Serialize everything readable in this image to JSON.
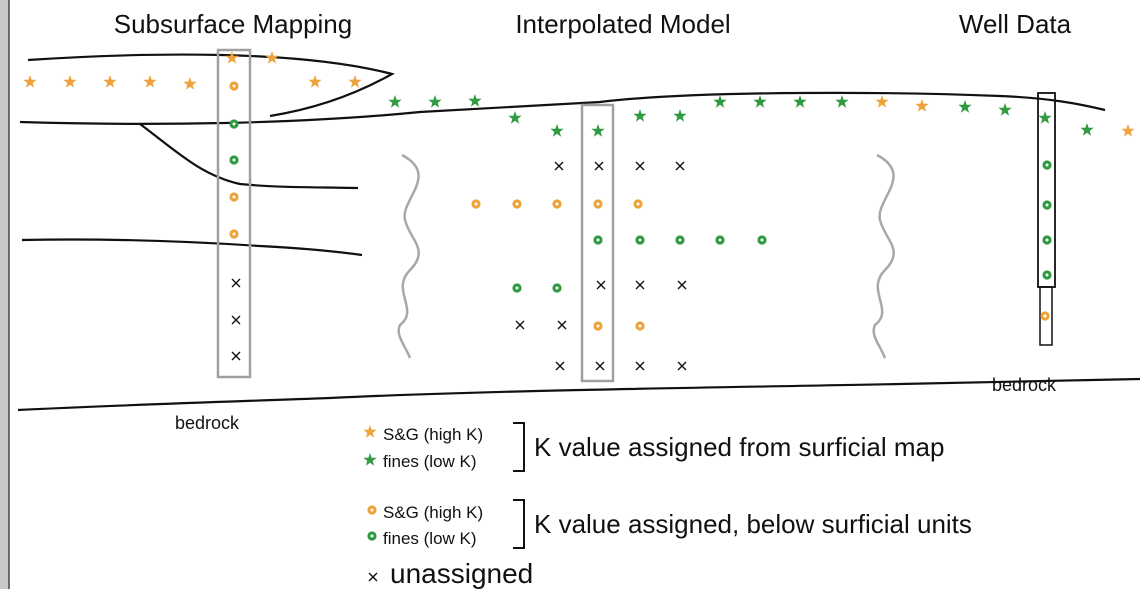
{
  "panels": {
    "titles": [
      "Subsurface Mapping",
      "Interpolated Model",
      "Well Data"
    ]
  },
  "labels": {
    "bedrock_left": "bedrock",
    "bedrock_right": "bedrock"
  },
  "legend": {
    "surficial": {
      "items": [
        "S&G (high K)",
        "fines (low K)"
      ],
      "description": "K value assigned from surficial map"
    },
    "subsurface": {
      "items": [
        "S&G (high K)",
        "fines (low K)"
      ],
      "description": "K value assigned, below surficial units"
    },
    "unassigned": "unassigned"
  }
}
